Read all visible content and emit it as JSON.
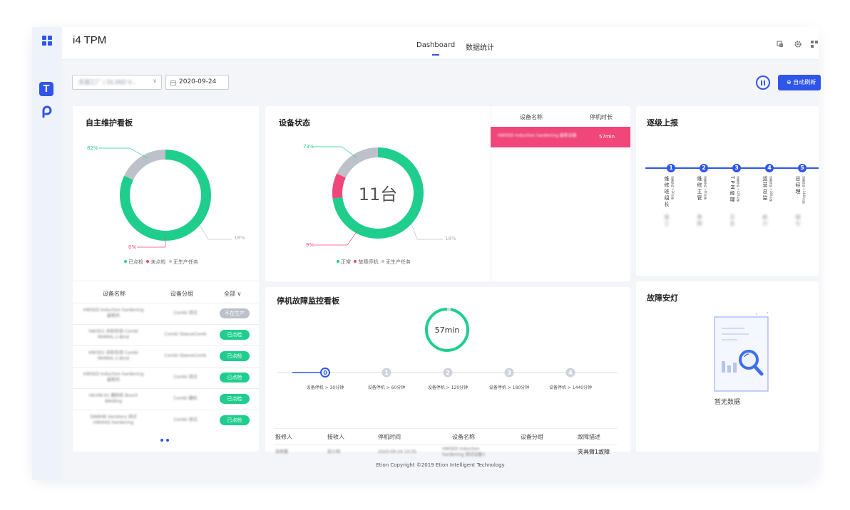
{
  "app": {
    "title": "i4 TPM"
  },
  "tabs": [
    {
      "label": "Dashboard",
      "active": true
    },
    {
      "label": "数据统计",
      "active": false
    }
  ],
  "filters": {
    "factory_value": "无锡工厂 / DL36D V... ",
    "date_value": "2020-09-24"
  },
  "refresh_label": "⊕ 自动刷新",
  "colors": {
    "accent": "#2f56e8",
    "green": "#1fce8d",
    "pink": "#f0467a",
    "grey": "#bcc1ca"
  },
  "autonomous": {
    "title": "自主维护看板",
    "chart_data": {
      "type": "pie",
      "categories": [
        "已点检",
        "未点检",
        "无生产任务"
      ],
      "values": [
        82,
        0,
        18
      ]
    },
    "labels": {
      "checked": "82%",
      "unchecked": "0%",
      "noTask": "18%"
    },
    "legend": [
      "已点检",
      "未点检",
      "无生产任务"
    ],
    "columns": {
      "name": "设备名称",
      "group": "设备分组",
      "filter": "全部 ∨"
    },
    "rows": [
      {
        "name": "HW5ED Induction hardening 最新的",
        "group": "Combi 测试",
        "status": "不在生产",
        "state": "grey"
      },
      {
        "name": "HW3D1 齿轮检测 Combi MHMHL-1-Bind",
        "group": "Combi SleeveComb",
        "status": "已点检",
        "state": "green"
      },
      {
        "name": "HW3D1 齿轮检测 Combi MHMHL-1-Bind",
        "group": "Combi SleeveComb",
        "status": "已点检",
        "state": "green"
      },
      {
        "name": "HW5ED Induction hardening 最新的",
        "group": "Combi 测试",
        "status": "已点检",
        "state": "green"
      },
      {
        "name": "HK-HN-61 磨削机 Bosch Welding",
        "group": "Combi 磨机",
        "status": "已点检",
        "state": "green"
      },
      {
        "name": "DAWHB Varistery 测试 HW4HQ Hardening",
        "group": "Combi 测试",
        "status": "已点检",
        "state": "green"
      }
    ]
  },
  "equipment": {
    "title": "设备状态",
    "center_text": "11台",
    "chart_data": {
      "type": "pie",
      "categories": [
        "正常",
        "故障停机",
        "无生产任务"
      ],
      "values": [
        73,
        9,
        18
      ]
    },
    "labels": {
      "normal": "73%",
      "down": "9%",
      "noTask": "18%"
    },
    "legend": [
      "正常",
      "故障停机",
      "无生产任务"
    ],
    "columns": {
      "name": "设备名称",
      "duration": "停机时长"
    },
    "down_row": {
      "name": "HW5ED Induction hardening 最新设备",
      "duration": "57min"
    }
  },
  "escalation": {
    "title": "逐级上报",
    "steps": [
      {
        "n": "1",
        "role": "维修班组长",
        "note": "设备停机 >30分钟",
        "person": "张三"
      },
      {
        "n": "2",
        "role": "维修主管",
        "note": "设备停机 >60分钟",
        "person": "李四"
      },
      {
        "n": "3",
        "role": "TPM经理",
        "note": "设备停机 >120分钟",
        "person": "王五"
      },
      {
        "n": "4",
        "role": "运营总监",
        "note": "设备停机 >180分钟",
        "person": "赵六"
      },
      {
        "n": "5",
        "role": "总经理",
        "note": "设备停机 >1440分钟",
        "person": "钱七"
      }
    ]
  },
  "downtime": {
    "title": "停机故障监控看板",
    "center_text": "57min",
    "steps": [
      {
        "n": "0",
        "label": "设备停机 > 30分钟"
      },
      {
        "n": "1",
        "label": "设备停机 > 60分钟"
      },
      {
        "n": "2",
        "label": "设备停机 > 120分钟"
      },
      {
        "n": "3",
        "label": "设备停机 > 180分钟"
      },
      {
        "n": "4",
        "label": "设备停机 > 1440分钟"
      }
    ],
    "columns": [
      "报修人",
      "接收人",
      "停机时间",
      "设备名称",
      "设备分组",
      "故障描述"
    ],
    "row": [
      "张刚蕾",
      "张小明",
      "2020-09-24 10:35",
      "HW5ED Induction hardening 测试设备1",
      "",
      "夹具臂1故障"
    ]
  },
  "andon": {
    "title": "故障安灯",
    "empty": "暂无数据"
  },
  "footer": "Etion Copyright ©2019 Etion Intelligent Technology"
}
